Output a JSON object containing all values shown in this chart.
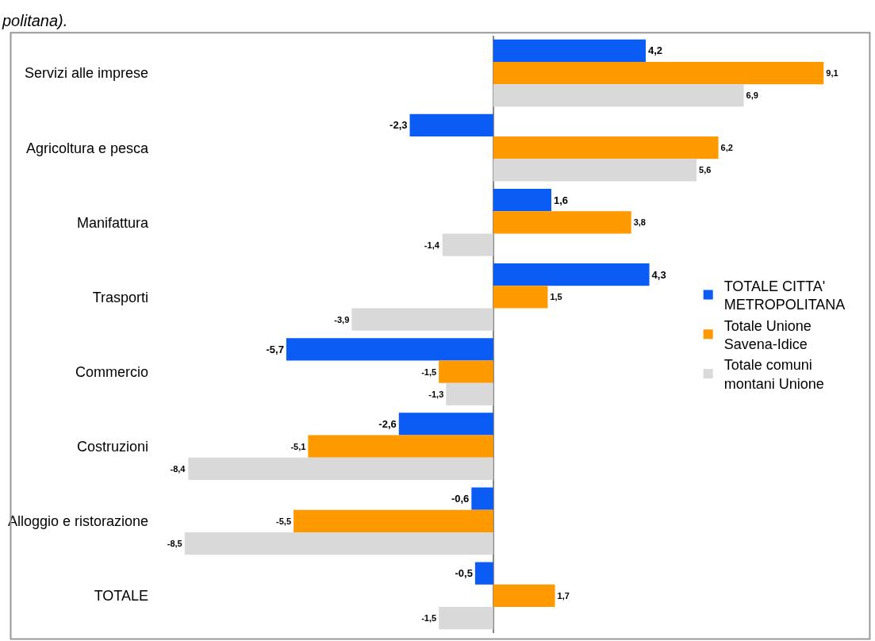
{
  "chart_data": {
    "type": "bar",
    "orientation": "horizontal",
    "annotations": [
      "politana)."
    ],
    "categories": [
      "Servizi alle imprese",
      "Agricoltura e pesca",
      "Manifattura",
      "Trasporti",
      "Commercio",
      "Costruzioni",
      "Alloggio e ristorazione",
      "TOTALE"
    ],
    "series": [
      {
        "name": "TOTALE CITTA' METROPOLITANA",
        "color": "#0a5cf5",
        "values": [
          4.2,
          -2.3,
          1.6,
          4.3,
          -5.7,
          -2.6,
          -0.6,
          -0.5
        ],
        "value_labels": [
          "4,2",
          "-2,3",
          "1,6",
          "4,3",
          "-5,7",
          "-2,6",
          "-0,6",
          "-0,5"
        ]
      },
      {
        "name": "Totale Unione Savena-Idice",
        "color": "#ff9900",
        "values": [
          9.1,
          6.2,
          3.8,
          1.5,
          -1.5,
          -5.1,
          -5.5,
          1.7
        ],
        "value_labels": [
          "9,1",
          "6,2",
          "3,8",
          "1,5",
          "-1,5",
          "-5,1",
          "-5,5",
          "1,7"
        ]
      },
      {
        "name": "Totale comuni montani Unione",
        "color": "#d9d9d9",
        "values": [
          6.9,
          5.6,
          -1.4,
          -3.9,
          -1.3,
          -8.4,
          -8.5,
          -1.5
        ],
        "value_labels": [
          "6,9",
          "5,6",
          "-1,4",
          "-3,9",
          "-1,3",
          "-8,4",
          "-8,5",
          "-1,5"
        ]
      }
    ],
    "legend": "right"
  }
}
